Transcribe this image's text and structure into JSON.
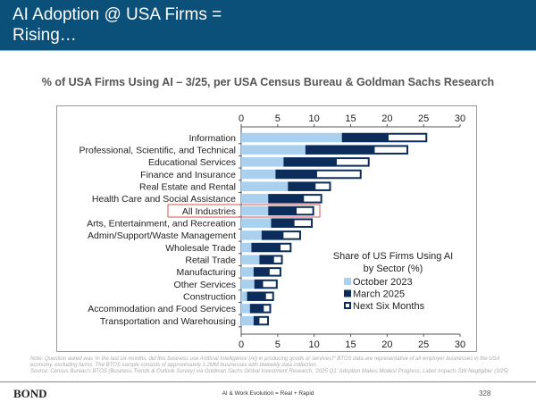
{
  "header": {
    "title_line1": "AI Adoption @ USA Firms =",
    "title_line2": "Rising…"
  },
  "subtitle": "% of USA Firms Using AI – 3/25, per USA Census Bureau & Goldman Sachs Research",
  "colors": {
    "banner": "#0b5079",
    "oct2023": "#a9d0ef",
    "mar2025": "#0c2d5c",
    "next": "#ffffff",
    "highlight": "#d9534f"
  },
  "chart_data": {
    "type": "bar",
    "orientation": "horizontal",
    "title": "Share of US Firms Using AI by Sector (%)",
    "legend_title_line1": "Share of US Firms Using AI",
    "legend_title_line2": "by Sector (%)",
    "legend_position": "bottom-right",
    "xlim": [
      0,
      30
    ],
    "xticks": [
      "0",
      "5",
      "10",
      "15",
      "20",
      "25",
      "30"
    ],
    "highlighted_category": "All Industries",
    "categories": [
      "Information",
      "Professional, Scientific, and Technical",
      "Educational Services",
      "Finance and Insurance",
      "Real Estate and Rental",
      "Health Care and Social Assistance",
      "All Industries",
      "Arts, Entertainment, and Recreation",
      "Admin/Support/Waste Management",
      "Wholesale Trade",
      "Retail Trade",
      "Manufacturing",
      "Other Services",
      "Construction",
      "Accommodation and Food Services",
      "Transportation and Warehousing"
    ],
    "series": [
      {
        "name": "October 2023",
        "values": [
          13.8,
          8.8,
          5.8,
          4.7,
          6.4,
          3.7,
          3.7,
          4.1,
          2.8,
          1.4,
          2.5,
          1.7,
          1.8,
          0.8,
          1.2,
          1.7
        ]
      },
      {
        "name": "March 2025",
        "values": [
          20.2,
          18.3,
          13.1,
          10.4,
          10.2,
          8.6,
          7.6,
          7.3,
          5.8,
          5.4,
          4.5,
          3.9,
          3.0,
          3.4,
          3.1,
          2.5
        ]
      },
      {
        "name": "Next Six Months",
        "values": [
          25.5,
          22.9,
          17.6,
          16.5,
          12.3,
          11.1,
          10.0,
          9.8,
          8.2,
          6.9,
          5.7,
          5.5,
          5.0,
          4.5,
          4.1,
          3.8
        ]
      }
    ]
  },
  "note": "Note: Question asked was 'In the last six months, did this business use Artificial Intelligence (AI) in producing goods or services?' BTOS data are representative of all employer businesses in the USA economy, excluding farms. The BTOS sample consists of approximately 1.2MM businesses with biweekly data collection.",
  "source": "Source: Census Bureau's BTOS (Business Trends & Outlook Survey) via Goldman Sachs Global Investment Research, '2025 Q1: Adoption Makes Modest Progress, Labor Impacts Still Negligible' (3/25)",
  "footer": {
    "logo": "BOND",
    "center": "AI & Work Evolution = Real + Rapid",
    "page": "328"
  }
}
